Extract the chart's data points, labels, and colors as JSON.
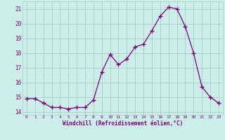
{
  "x": [
    0,
    1,
    2,
    3,
    4,
    5,
    6,
    7,
    8,
    9,
    10,
    11,
    12,
    13,
    14,
    15,
    16,
    17,
    18,
    19,
    20,
    21,
    22,
    23
  ],
  "y": [
    14.9,
    14.9,
    14.6,
    14.3,
    14.3,
    14.2,
    14.3,
    14.3,
    14.8,
    16.7,
    17.9,
    17.2,
    17.6,
    18.4,
    18.6,
    19.5,
    20.5,
    21.1,
    21.0,
    19.8,
    18.0,
    15.7,
    15.0,
    14.6
  ],
  "line_color": "#7b0080",
  "marker_color": "#7b0080",
  "bg_color": "#cceee8",
  "grid_color": "#aaccc8",
  "xlabel": "Windchill (Refroidissement éolien,°C)",
  "xlabel_color": "#7b0080",
  "tick_color": "#7b0080",
  "ylim": [
    13.8,
    21.5
  ],
  "yticks": [
    14,
    15,
    16,
    17,
    18,
    19,
    20,
    21
  ],
  "xlim": [
    -0.5,
    23.5
  ],
  "xticks": [
    0,
    1,
    2,
    3,
    4,
    5,
    6,
    7,
    8,
    9,
    10,
    11,
    12,
    13,
    14,
    15,
    16,
    17,
    18,
    19,
    20,
    21,
    22,
    23
  ]
}
